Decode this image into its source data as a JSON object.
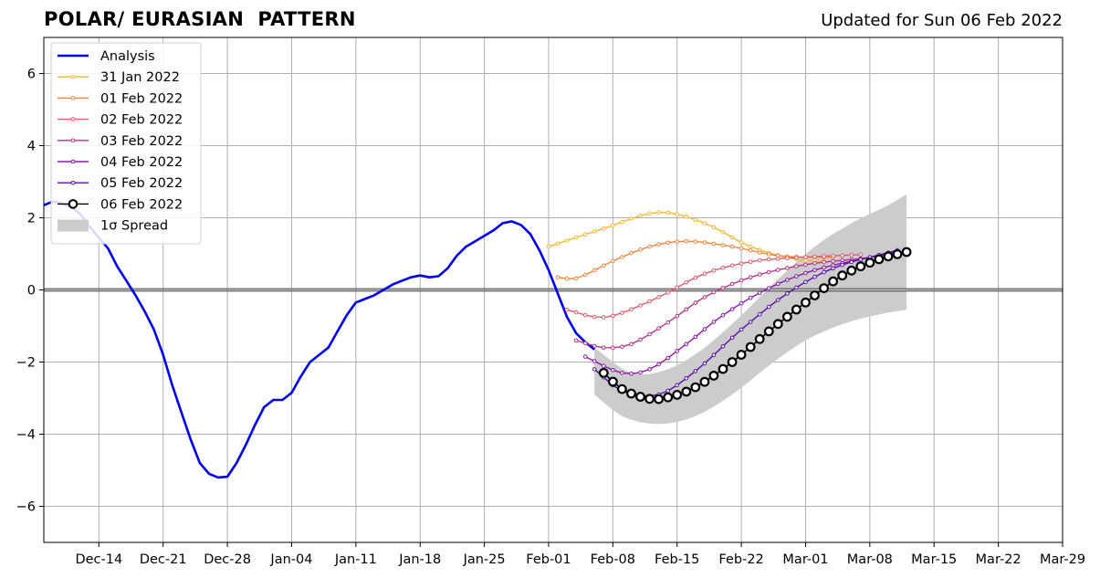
{
  "chart_data": {
    "type": "line",
    "title": "POLAR/ EURASIAN  PATTERN",
    "subtitle": "Updated for Sun 06 Feb 2022",
    "xlabel": "",
    "ylabel": "",
    "xlim": [
      "2021-12-08",
      "2022-03-29"
    ],
    "ylim": [
      -7,
      7
    ],
    "grid": true,
    "legend_position": "top-left",
    "x_ticks": [
      "2021-12-14",
      "2021-12-21",
      "2021-12-28",
      "2022-01-04",
      "2022-01-11",
      "2022-01-18",
      "2022-01-25",
      "2022-02-01",
      "2022-02-08",
      "2022-02-15",
      "2022-02-22",
      "2022-03-01",
      "2022-03-08",
      "2022-03-15",
      "2022-03-22",
      "2022-03-29"
    ],
    "x_tick_labels": [
      "Dec-14",
      "Dec-21",
      "Dec-28",
      "Jan-04",
      "Jan-11",
      "Jan-18",
      "Jan-25",
      "Feb-01",
      "Feb-08",
      "Feb-15",
      "Feb-22",
      "Mar-01",
      "Mar-08",
      "Mar-15",
      "Mar-22",
      "Mar-29"
    ],
    "y_ticks": [
      -6,
      -4,
      -2,
      0,
      2,
      4,
      6
    ],
    "y_tick_labels": [
      "−6",
      "−4",
      "−2",
      "0",
      "2",
      "4",
      "6"
    ],
    "analysis": {
      "name": "Analysis",
      "color": "#0000ee",
      "start": "2021-12-08",
      "values": [
        2.35,
        2.45,
        2.4,
        2.3,
        2.1,
        1.75,
        1.45,
        1.15,
        0.65,
        0.25,
        -0.15,
        -0.6,
        -1.1,
        -1.8,
        -2.65,
        -3.4,
        -4.15,
        -4.8,
        -5.1,
        -5.2,
        -5.18,
        -4.8,
        -4.3,
        -3.75,
        -3.25,
        -3.05,
        -3.05,
        -2.85,
        -2.4,
        -2.0,
        -1.8,
        -1.6,
        -1.15,
        -0.7,
        -0.35,
        -0.25,
        -0.15,
        0.0,
        0.15,
        0.25,
        0.35,
        0.4,
        0.35,
        0.38,
        0.6,
        0.95,
        1.2,
        1.35,
        1.5,
        1.65,
        1.85,
        1.9,
        1.8,
        1.55,
        1.1,
        0.55,
        -0.1,
        -0.75,
        -1.2,
        -1.45,
        -1.65
      ]
    },
    "series": [
      {
        "name": "31 Jan 2022",
        "color": "#f7b731",
        "start": "2022-02-01",
        "points": [
          [
            "2022-02-01",
            1.2
          ],
          [
            "2022-02-07",
            1.7
          ],
          [
            "2022-02-13",
            2.15
          ],
          [
            "2022-02-18",
            1.85
          ],
          [
            "2022-02-23",
            1.2
          ],
          [
            "2022-02-28",
            0.85
          ],
          [
            "2022-03-03",
            0.8
          ]
        ]
      },
      {
        "name": "01 Feb 2022",
        "color": "#ee8642",
        "start": "2022-02-02",
        "points": [
          [
            "2022-02-02",
            0.35
          ],
          [
            "2022-02-04",
            0.32
          ],
          [
            "2022-02-08",
            0.8
          ],
          [
            "2022-02-12",
            1.2
          ],
          [
            "2022-02-16",
            1.35
          ],
          [
            "2022-02-21",
            1.2
          ],
          [
            "2022-02-26",
            0.95
          ],
          [
            "2022-03-04",
            0.9
          ]
        ]
      },
      {
        "name": "02 Feb 2022",
        "color": "#dc5d6b",
        "start": "2022-02-03",
        "points": [
          [
            "2022-02-03",
            -0.55
          ],
          [
            "2022-02-06",
            -0.75
          ],
          [
            "2022-02-08",
            -0.72
          ],
          [
            "2022-02-13",
            -0.2
          ],
          [
            "2022-02-18",
            0.45
          ],
          [
            "2022-02-23",
            0.78
          ],
          [
            "2022-02-27",
            0.88
          ],
          [
            "2022-03-07",
            0.98
          ]
        ]
      },
      {
        "name": "03 Feb 2022",
        "color": "#b5338a",
        "start": "2022-02-04",
        "points": [
          [
            "2022-02-04",
            -1.4
          ],
          [
            "2022-02-07",
            -1.6
          ],
          [
            "2022-02-10",
            -1.5
          ],
          [
            "2022-02-14",
            -0.9
          ],
          [
            "2022-02-18",
            -0.2
          ],
          [
            "2022-02-23",
            0.35
          ],
          [
            "2022-03-01",
            0.7
          ],
          [
            "2022-03-08",
            0.9
          ],
          [
            "2022-03-10",
            1.0
          ]
        ]
      },
      {
        "name": "04 Feb 2022",
        "color": "#8b18a8",
        "start": "2022-02-05",
        "points": [
          [
            "2022-02-05",
            -1.85
          ],
          [
            "2022-02-09",
            -2.3
          ],
          [
            "2022-02-12",
            -2.2
          ],
          [
            "2022-02-16",
            -1.5
          ],
          [
            "2022-02-20",
            -0.7
          ],
          [
            "2022-02-25",
            0.05
          ],
          [
            "2022-03-02",
            0.55
          ],
          [
            "2022-03-08",
            0.9
          ],
          [
            "2022-03-11",
            1.05
          ]
        ]
      },
      {
        "name": "05 Feb 2022",
        "color": "#5a0fa8",
        "start": "2022-02-06",
        "points": [
          [
            "2022-02-06",
            -2.2
          ],
          [
            "2022-02-09",
            -2.8
          ],
          [
            "2022-02-13",
            -2.9
          ],
          [
            "2022-02-17",
            -2.25
          ],
          [
            "2022-02-22",
            -1.1
          ],
          [
            "2022-02-27",
            -0.1
          ],
          [
            "2022-03-04",
            0.6
          ],
          [
            "2022-03-11",
            1.1
          ]
        ]
      },
      {
        "name": "06 Feb 2022",
        "color": "#000000",
        "start": "2022-02-07",
        "points": [
          [
            "2022-02-07",
            -2.3
          ],
          [
            "2022-02-09",
            -2.75
          ],
          [
            "2022-02-12",
            -3.02
          ],
          [
            "2022-02-14",
            -2.98
          ],
          [
            "2022-02-17",
            -2.7
          ],
          [
            "2022-02-21",
            -2.0
          ],
          [
            "2022-02-25",
            -1.15
          ],
          [
            "2022-03-01",
            -0.35
          ],
          [
            "2022-03-05",
            0.4
          ],
          [
            "2022-03-09",
            0.85
          ],
          [
            "2022-03-12",
            1.05
          ]
        ]
      }
    ],
    "spread": {
      "name": "1σ Spread",
      "color": "#cccccc",
      "upper": [
        [
          "2022-02-06",
          -1.6
        ],
        [
          "2022-02-10",
          -2.3
        ],
        [
          "2022-02-14",
          -2.2
        ],
        [
          "2022-02-18",
          -1.6
        ],
        [
          "2022-02-22",
          -0.7
        ],
        [
          "2022-02-26",
          0.3
        ],
        [
          "2022-03-02",
          1.2
        ],
        [
          "2022-03-06",
          1.85
        ],
        [
          "2022-03-10",
          2.35
        ],
        [
          "2022-03-12",
          2.65
        ]
      ],
      "lower": [
        [
          "2022-02-06",
          -2.9
        ],
        [
          "2022-02-09",
          -3.5
        ],
        [
          "2022-02-13",
          -3.72
        ],
        [
          "2022-02-17",
          -3.5
        ],
        [
          "2022-02-21",
          -2.9
        ],
        [
          "2022-02-25",
          -2.1
        ],
        [
          "2022-03-01",
          -1.4
        ],
        [
          "2022-03-05",
          -0.95
        ],
        [
          "2022-03-09",
          -0.68
        ],
        [
          "2022-03-12",
          -0.55
        ]
      ]
    }
  }
}
